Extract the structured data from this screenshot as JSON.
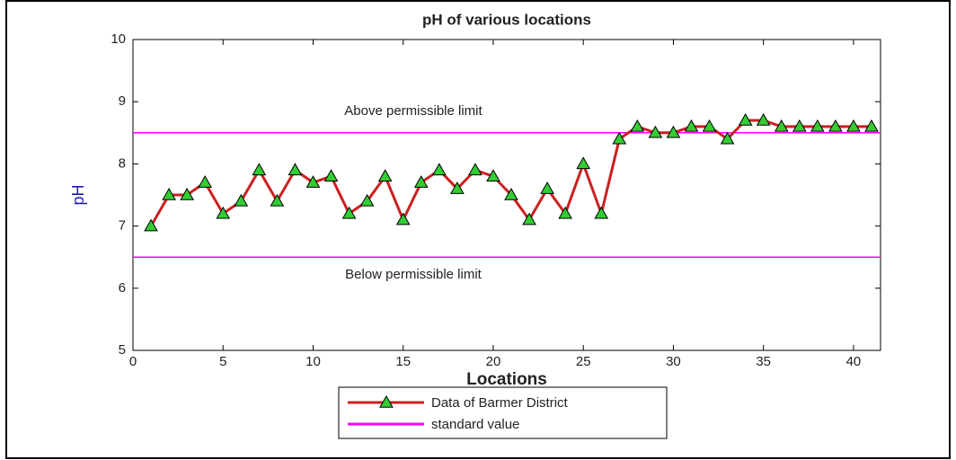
{
  "chart_data": {
    "type": "line",
    "title": "pH of various locations",
    "x_label": "Locations",
    "y_label": "pH",
    "x": [
      1,
      2,
      3,
      4,
      5,
      6,
      7,
      8,
      9,
      10,
      11,
      12,
      13,
      14,
      15,
      16,
      17,
      18,
      19,
      20,
      21,
      22,
      23,
      24,
      25,
      26,
      27,
      28,
      29,
      30,
      31,
      32,
      33,
      34,
      35,
      36,
      37,
      38,
      39,
      40,
      41
    ],
    "series": [
      {
        "name": "Data of Barmer District",
        "color": "#cc2020",
        "marker_color": "#33cc33",
        "values": [
          7.0,
          7.5,
          7.5,
          7.7,
          7.2,
          7.4,
          7.9,
          7.4,
          7.9,
          7.7,
          7.8,
          7.2,
          7.4,
          7.8,
          7.1,
          7.7,
          7.9,
          7.6,
          7.9,
          7.8,
          7.5,
          7.1,
          7.6,
          7.2,
          8.0,
          7.2,
          8.4,
          8.6,
          8.5,
          8.5,
          8.6,
          8.6,
          8.4,
          8.7,
          8.7,
          8.6,
          8.6,
          8.6,
          8.6,
          8.6,
          8.6
        ]
      }
    ],
    "reference_lines": {
      "name": "standard value",
      "color": "#ff00ff",
      "values": [
        8.5,
        6.5
      ]
    },
    "annotations": [
      "Above permissible limit",
      "Below permissible limit"
    ],
    "xlim": [
      0,
      41.5
    ],
    "xticks": [
      0,
      5,
      10,
      15,
      20,
      25,
      30,
      35,
      40
    ],
    "ylim": [
      5,
      10
    ],
    "yticks": [
      5,
      6,
      7,
      8,
      9,
      10
    ]
  }
}
